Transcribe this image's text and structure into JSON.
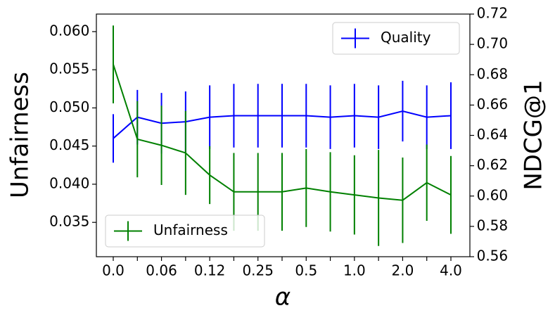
{
  "chart_data": {
    "type": "line",
    "xlabel": "α",
    "ylabel": "Unfairness",
    "y2label": "NDCG@1",
    "categories": [
      "0.0",
      null,
      "0.06",
      null,
      "0.12",
      null,
      "0.25",
      null,
      "0.5",
      null,
      "1.0",
      null,
      "2.0",
      null,
      "4.0"
    ],
    "ylim": [
      0.0305,
      0.0623
    ],
    "yticks": [
      0.035,
      {
        "value": 0.04,
        "label": "0.040"
      },
      0.045,
      {
        "value": 0.05,
        "label": "0.050"
      },
      0.055,
      {
        "value": 0.06,
        "label": "0.060"
      }
    ],
    "y2lim": [
      0.56,
      0.72
    ],
    "y2ticks": [
      0.56,
      0.58,
      {
        "value": 0.6,
        "label": "0.60"
      },
      0.62,
      0.64,
      0.66,
      0.68,
      {
        "value": 0.7,
        "label": "0.70"
      },
      0.72
    ],
    "series": [
      {
        "name": "Quality",
        "color": "#0000ff",
        "axis": "y2",
        "legend": "upper right",
        "values": [
          0.638,
          0.652,
          0.648,
          0.649,
          0.652,
          0.653,
          0.653,
          0.653,
          0.653,
          0.652,
          0.653,
          0.652,
          0.656,
          0.652,
          0.653
        ],
        "errors": [
          0.016,
          0.018,
          0.02,
          0.02,
          0.021,
          0.021,
          0.021,
          0.021,
          0.021,
          0.021,
          0.021,
          0.021,
          0.02,
          0.021,
          0.022
        ]
      },
      {
        "name": "Unfairness",
        "color": "#008000",
        "axis": "y",
        "legend": "lower left",
        "values": [
          0.0557,
          0.0459,
          0.0451,
          0.0441,
          0.0412,
          0.039,
          0.039,
          0.039,
          0.0395,
          0.039,
          0.0386,
          0.0382,
          0.0379,
          0.0402,
          0.0386
        ],
        "errors": [
          0.0051,
          0.005,
          0.0052,
          0.0055,
          0.0038,
          0.0051,
          0.0051,
          0.0051,
          0.0051,
          0.0052,
          0.0052,
          0.0063,
          0.0056,
          0.005,
          0.0051
        ]
      }
    ]
  }
}
